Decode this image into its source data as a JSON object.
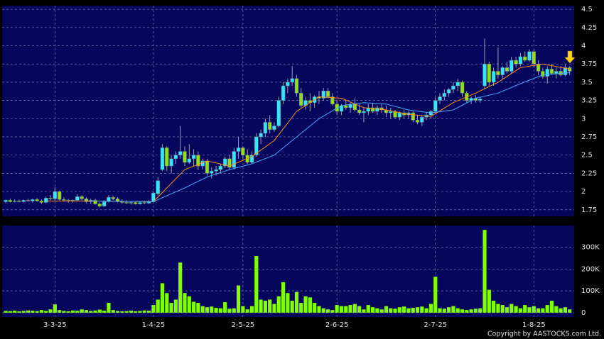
{
  "chart_data": [
    {
      "type": "candlestick",
      "up_color": "#33e6ff",
      "down_color": "#8fe01a",
      "grid": true,
      "xlim": [
        -0.8,
        127
      ],
      "ylim": [
        1.66,
        4.55
      ],
      "yticks": [
        1.75,
        2,
        2.25,
        2.5,
        2.75,
        3,
        3.25,
        3.5,
        3.75,
        4,
        4.25,
        4.5
      ],
      "ohlc": [
        [
          1.86,
          1.89,
          1.84,
          1.88
        ],
        [
          1.88,
          1.9,
          1.85,
          1.86
        ],
        [
          1.86,
          1.89,
          1.85,
          1.87
        ],
        [
          1.87,
          1.89,
          1.85,
          1.86
        ],
        [
          1.86,
          1.89,
          1.85,
          1.88
        ],
        [
          1.88,
          1.9,
          1.86,
          1.87
        ],
        [
          1.87,
          1.9,
          1.85,
          1.89
        ],
        [
          1.89,
          1.91,
          1.86,
          1.87
        ],
        [
          1.87,
          1.89,
          1.83,
          1.85
        ],
        [
          1.85,
          1.93,
          1.84,
          1.91
        ],
        [
          1.91,
          1.95,
          1.88,
          1.9
        ],
        [
          1.9,
          2.06,
          1.88,
          2.0
        ],
        [
          2.0,
          2.01,
          1.88,
          1.89
        ],
        [
          1.89,
          1.92,
          1.86,
          1.88
        ],
        [
          1.88,
          1.9,
          1.85,
          1.87
        ],
        [
          1.87,
          1.89,
          1.85,
          1.88
        ],
        [
          1.88,
          1.96,
          1.87,
          1.93
        ],
        [
          1.93,
          1.95,
          1.88,
          1.9
        ],
        [
          1.9,
          1.92,
          1.84,
          1.86
        ],
        [
          1.86,
          1.9,
          1.83,
          1.88
        ],
        [
          1.88,
          1.9,
          1.82,
          1.83
        ],
        [
          1.83,
          1.85,
          1.78,
          1.8
        ],
        [
          1.8,
          1.88,
          1.79,
          1.86
        ],
        [
          1.86,
          1.95,
          1.85,
          1.92
        ],
        [
          1.92,
          1.94,
          1.88,
          1.9
        ],
        [
          1.9,
          1.92,
          1.85,
          1.86
        ],
        [
          1.86,
          1.89,
          1.83,
          1.85
        ],
        [
          1.85,
          1.88,
          1.83,
          1.84
        ],
        [
          1.84,
          1.87,
          1.82,
          1.85
        ],
        [
          1.85,
          1.87,
          1.82,
          1.83
        ],
        [
          1.83,
          1.86,
          1.82,
          1.85
        ],
        [
          1.85,
          1.87,
          1.83,
          1.84
        ],
        [
          1.84,
          1.88,
          1.83,
          1.86
        ],
        [
          1.86,
          2.0,
          1.85,
          1.98
        ],
        [
          1.97,
          2.2,
          1.95,
          2.15
        ],
        [
          2.3,
          2.65,
          2.28,
          2.6
        ],
        [
          2.6,
          2.62,
          2.28,
          2.35
        ],
        [
          2.35,
          2.5,
          2.25,
          2.45
        ],
        [
          2.45,
          2.55,
          2.38,
          2.5
        ],
        [
          2.5,
          2.9,
          2.45,
          2.55
        ],
        [
          2.55,
          2.62,
          2.35,
          2.4
        ],
        [
          2.4,
          2.65,
          2.38,
          2.45
        ],
        [
          2.45,
          2.58,
          2.35,
          2.5
        ],
        [
          2.5,
          2.55,
          2.3,
          2.35
        ],
        [
          2.35,
          2.45,
          2.3,
          2.42
        ],
        [
          2.42,
          2.45,
          2.22,
          2.25
        ],
        [
          2.25,
          2.33,
          2.18,
          2.28
        ],
        [
          2.28,
          2.35,
          2.22,
          2.3
        ],
        [
          2.3,
          2.38,
          2.25,
          2.35
        ],
        [
          2.35,
          2.48,
          2.32,
          2.45
        ],
        [
          2.45,
          2.5,
          2.3,
          2.33
        ],
        [
          2.33,
          2.6,
          2.3,
          2.55
        ],
        [
          2.55,
          2.75,
          2.45,
          2.6
        ],
        [
          2.6,
          2.62,
          2.45,
          2.5
        ],
        [
          2.5,
          2.58,
          2.38,
          2.4
        ],
        [
          2.4,
          2.55,
          2.38,
          2.5
        ],
        [
          2.5,
          2.8,
          2.48,
          2.75
        ],
        [
          2.75,
          2.85,
          2.65,
          2.8
        ],
        [
          2.8,
          3.0,
          2.75,
          2.95
        ],
        [
          2.95,
          3.05,
          2.8,
          2.85
        ],
        [
          2.85,
          2.95,
          2.82,
          2.9
        ],
        [
          2.9,
          3.3,
          2.88,
          3.25
        ],
        [
          3.25,
          3.5,
          3.2,
          3.45
        ],
        [
          3.45,
          3.55,
          3.35,
          3.5
        ],
        [
          3.5,
          3.72,
          3.45,
          3.55
        ],
        [
          3.55,
          3.6,
          3.3,
          3.35
        ],
        [
          3.35,
          3.42,
          3.15,
          3.18
        ],
        [
          3.18,
          3.3,
          3.12,
          3.25
        ],
        [
          3.25,
          3.35,
          3.1,
          3.22
        ],
        [
          3.22,
          3.32,
          3.15,
          3.3
        ],
        [
          3.3,
          3.38,
          3.2,
          3.28
        ],
        [
          3.28,
          3.42,
          3.25,
          3.38
        ],
        [
          3.38,
          3.42,
          3.28,
          3.3
        ],
        [
          3.3,
          3.35,
          3.18,
          3.2
        ],
        [
          3.2,
          3.25,
          3.05,
          3.1
        ],
        [
          3.1,
          3.2,
          3.05,
          3.18
        ],
        [
          3.18,
          3.25,
          3.12,
          3.15
        ],
        [
          3.15,
          3.22,
          3.08,
          3.2
        ],
        [
          3.2,
          3.28,
          3.1,
          3.12
        ],
        [
          3.12,
          3.2,
          3.05,
          3.08
        ],
        [
          3.08,
          3.15,
          2.95,
          3.1
        ],
        [
          3.1,
          3.2,
          3.05,
          3.15
        ],
        [
          3.15,
          3.22,
          3.08,
          3.1
        ],
        [
          3.1,
          3.18,
          3.05,
          3.15
        ],
        [
          3.15,
          3.2,
          3.08,
          3.12
        ],
        [
          3.12,
          3.18,
          3.02,
          3.08
        ],
        [
          3.08,
          3.15,
          3.0,
          3.1
        ],
        [
          3.1,
          3.12,
          3.0,
          3.02
        ],
        [
          3.02,
          3.1,
          2.98,
          3.08
        ],
        [
          3.08,
          3.12,
          3.0,
          3.05
        ],
        [
          3.05,
          3.1,
          3.0,
          3.08
        ],
        [
          3.08,
          3.1,
          2.95,
          2.98
        ],
        [
          2.98,
          3.05,
          2.92,
          2.95
        ],
        [
          2.95,
          3.05,
          2.9,
          3.02
        ],
        [
          3.02,
          3.08,
          2.98,
          3.05
        ],
        [
          3.05,
          3.12,
          3.0,
          3.1
        ],
        [
          3.1,
          3.3,
          3.08,
          3.25
        ],
        [
          3.25,
          3.35,
          3.2,
          3.3
        ],
        [
          3.3,
          3.4,
          3.25,
          3.35
        ],
        [
          3.35,
          3.42,
          3.3,
          3.4
        ],
        [
          3.4,
          3.5,
          3.35,
          3.45
        ],
        [
          3.45,
          3.55,
          3.38,
          3.5
        ],
        [
          3.5,
          3.52,
          3.3,
          3.35
        ],
        [
          3.35,
          3.38,
          3.22,
          3.25
        ],
        [
          3.25,
          3.3,
          3.2,
          3.28
        ],
        [
          3.28,
          3.32,
          3.22,
          3.25
        ],
        [
          3.25,
          3.3,
          3.22,
          3.27
        ],
        [
          3.45,
          4.1,
          3.4,
          3.75
        ],
        [
          3.75,
          3.78,
          3.45,
          3.5
        ],
        [
          3.5,
          3.7,
          3.45,
          3.65
        ],
        [
          3.65,
          3.98,
          3.55,
          3.6
        ],
        [
          3.6,
          3.72,
          3.55,
          3.7
        ],
        [
          3.7,
          3.78,
          3.62,
          3.65
        ],
        [
          3.65,
          3.85,
          3.62,
          3.8
        ],
        [
          3.8,
          3.85,
          3.7,
          3.75
        ],
        [
          3.75,
          3.9,
          3.72,
          3.85
        ],
        [
          3.85,
          3.92,
          3.78,
          3.8
        ],
        [
          3.8,
          3.95,
          3.78,
          3.92
        ],
        [
          3.92,
          3.95,
          3.7,
          3.75
        ],
        [
          3.75,
          3.8,
          3.6,
          3.65
        ],
        [
          3.65,
          3.7,
          3.55,
          3.58
        ],
        [
          3.58,
          3.72,
          3.48,
          3.68
        ],
        [
          3.68,
          3.75,
          3.6,
          3.62
        ],
        [
          3.62,
          3.7,
          3.55,
          3.65
        ],
        [
          3.65,
          3.72,
          3.58,
          3.6
        ],
        [
          3.6,
          3.75,
          3.58,
          3.7
        ],
        [
          3.7,
          3.72,
          3.6,
          3.65
        ]
      ],
      "lines": [
        {
          "color": "#ff8c1a",
          "x": [
            9,
            20,
            33,
            40,
            45,
            50,
            55,
            60,
            65,
            70,
            75,
            80,
            85,
            90,
            95,
            100,
            105,
            110,
            115,
            120,
            126
          ],
          "values": [
            1.87,
            1.87,
            1.86,
            2.3,
            2.42,
            2.35,
            2.48,
            2.7,
            3.1,
            3.3,
            3.28,
            3.15,
            3.12,
            3.06,
            3.03,
            3.22,
            3.35,
            3.5,
            3.7,
            3.75,
            3.68
          ]
        },
        {
          "color": "#4aa8ff",
          "x": [
            19,
            33,
            40,
            45,
            50,
            55,
            60,
            65,
            70,
            75,
            80,
            85,
            90,
            95,
            100,
            105,
            110,
            115,
            120,
            126
          ],
          "values": [
            1.87,
            1.86,
            2.05,
            2.2,
            2.3,
            2.38,
            2.5,
            2.75,
            3.0,
            3.18,
            3.22,
            3.2,
            3.12,
            3.08,
            3.12,
            3.28,
            3.35,
            3.48,
            3.6,
            3.63
          ]
        }
      ]
    },
    {
      "type": "bar",
      "color": "#7fff00",
      "grid": true,
      "xlim": [
        -0.8,
        127
      ],
      "ylim": [
        -20000,
        400000
      ],
      "yticks": [
        0,
        {
          "value": 100000,
          "label": "100K"
        },
        {
          "value": 200000,
          "label": "200K"
        },
        {
          "value": 300000,
          "label": "300K"
        }
      ],
      "xticks": [
        {
          "value": 11,
          "label": "3-3-25"
        },
        {
          "value": 33,
          "label": "1-4-25"
        },
        {
          "value": 53,
          "label": "2-5-25"
        },
        {
          "value": 74,
          "label": "2-6-25"
        },
        {
          "value": 96,
          "label": "2-7-25"
        },
        {
          "value": 118,
          "label": "1-8-25"
        }
      ],
      "values": [
        8000,
        7000,
        9000,
        6000,
        8000,
        10000,
        9000,
        7000,
        12000,
        8000,
        15000,
        38000,
        12000,
        8000,
        6000,
        10000,
        9000,
        15000,
        12000,
        8000,
        10000,
        14000,
        9000,
        45000,
        12000,
        8000,
        6000,
        7000,
        9000,
        6000,
        8000,
        10000,
        9000,
        35000,
        60000,
        135000,
        90000,
        45000,
        60000,
        230000,
        90000,
        75000,
        50000,
        45000,
        30000,
        25000,
        28000,
        22000,
        20000,
        48000,
        18000,
        20000,
        125000,
        30000,
        15000,
        30000,
        260000,
        60000,
        55000,
        60000,
        40000,
        75000,
        140000,
        90000,
        55000,
        95000,
        45000,
        75000,
        70000,
        45000,
        30000,
        20000,
        15000,
        12000,
        35000,
        30000,
        30000,
        35000,
        40000,
        30000,
        15000,
        35000,
        25000,
        20000,
        15000,
        30000,
        20000,
        18000,
        25000,
        28000,
        20000,
        22000,
        25000,
        28000,
        20000,
        40000,
        165000,
        20000,
        18000,
        25000,
        30000,
        20000,
        15000,
        12000,
        15000,
        18000,
        20000,
        380000,
        105000,
        55000,
        40000,
        35000,
        25000,
        40000,
        30000,
        20000,
        35000,
        25000,
        30000,
        20000,
        20000,
        35000,
        55000,
        30000,
        20000,
        25000,
        15000
      ]
    }
  ],
  "footer": "Copyright by AASTOCKS.com Ltd."
}
